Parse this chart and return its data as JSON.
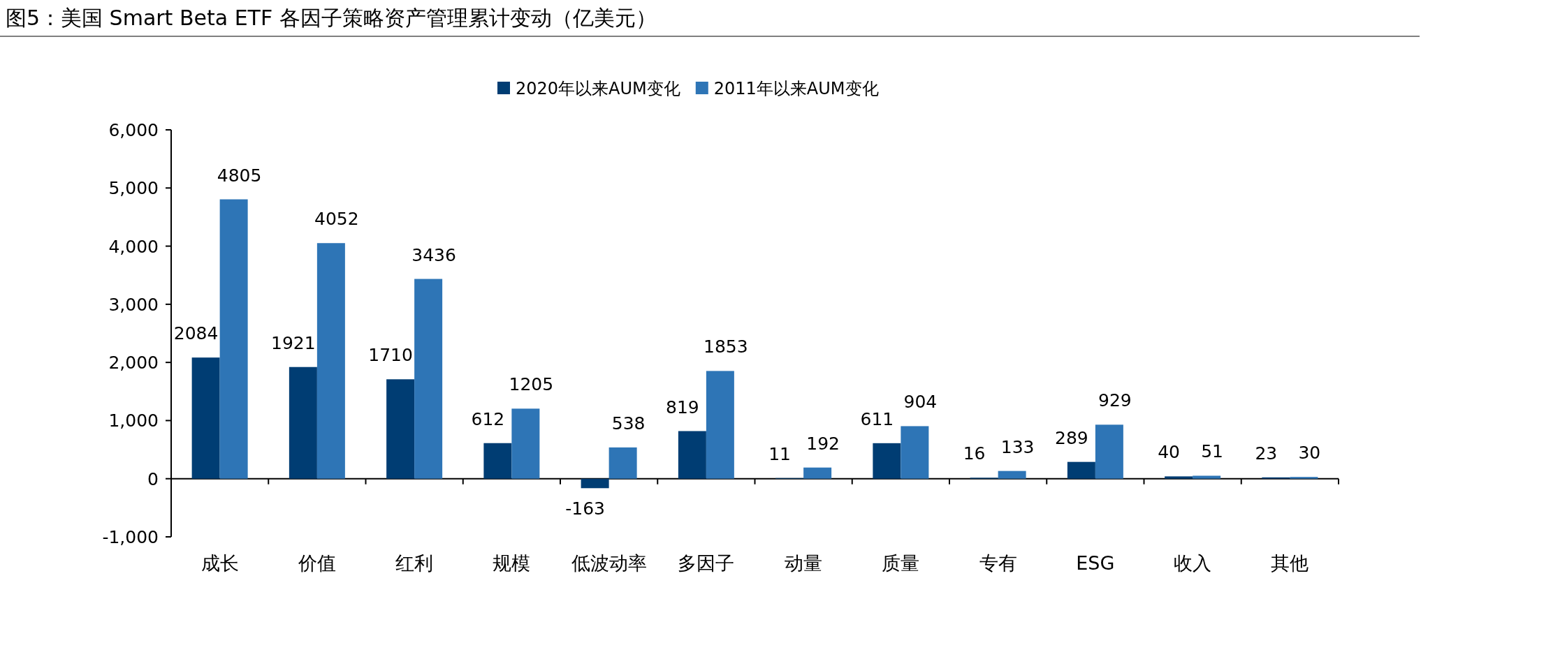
{
  "chart_data": {
    "type": "bar",
    "title": "图5：美国 Smart Beta ETF 各因子策略资产管理累计变动（亿美元）",
    "categories": [
      "成长",
      "价值",
      "红利",
      "规模",
      "低波动率",
      "多因子",
      "动量",
      "质量",
      "专有",
      "ESG",
      "收入",
      "其他"
    ],
    "series": [
      {
        "name": "2020年以来AUM变化",
        "color": "#003d73",
        "values": [
          2084,
          1921,
          1710,
          612,
          -163,
          819,
          11,
          611,
          16,
          289,
          40,
          23
        ]
      },
      {
        "name": "2011年以来AUM变化",
        "color": "#2e75b6",
        "values": [
          4805,
          4052,
          3436,
          1205,
          538,
          1853,
          192,
          904,
          133,
          929,
          51,
          30
        ]
      }
    ],
    "ylim": [
      -1000,
      6000
    ],
    "yticks": [
      {
        "value": -1000,
        "label": "-1,000"
      },
      {
        "value": 0,
        "label": "0"
      },
      {
        "value": 1000,
        "label": "1,000"
      },
      {
        "value": 2000,
        "label": "2,000"
      },
      {
        "value": 3000,
        "label": "3,000"
      },
      {
        "value": 4000,
        "label": "4,000"
      },
      {
        "value": 5000,
        "label": "5,000"
      },
      {
        "value": 6000,
        "label": "6,000"
      }
    ],
    "data_labels": true,
    "legend": "top"
  }
}
